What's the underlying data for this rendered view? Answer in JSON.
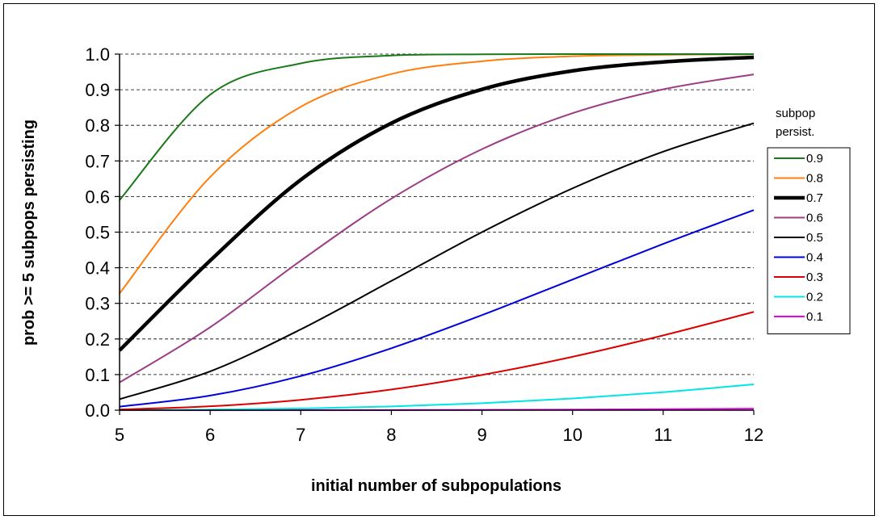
{
  "chart_data": {
    "type": "line",
    "xlabel": "initial number of subpopulations",
    "ylabel": "prob >= 5 subpops persisting",
    "xlim": [
      5,
      12
    ],
    "ylim": [
      0,
      1
    ],
    "x_ticks": [
      "5",
      "6",
      "7",
      "8",
      "9",
      "10",
      "11",
      "12"
    ],
    "y_ticks": [
      "0.0",
      "0.1",
      "0.2",
      "0.3",
      "0.4",
      "0.5",
      "0.6",
      "0.7",
      "0.8",
      "0.9",
      "1.0"
    ],
    "grid": "horizontal dashed",
    "legend_title": [
      "subpop",
      "persist."
    ],
    "legend_position": "right",
    "x": [
      5,
      6,
      7,
      8,
      9,
      10,
      11,
      12
    ],
    "series": [
      {
        "name": "0.9",
        "color": "#1a7a1a",
        "width": 2,
        "values": [
          0.59,
          0.886,
          0.974,
          0.996,
          0.9995,
          1.0,
          1.0,
          1.0
        ]
      },
      {
        "name": "0.8",
        "color": "#ff7f0e",
        "width": 2,
        "values": [
          0.328,
          0.655,
          0.852,
          0.944,
          0.98,
          0.994,
          0.998,
          0.9995
        ]
      },
      {
        "name": "0.7",
        "color": "#000000",
        "width": 4.5,
        "values": [
          0.168,
          0.42,
          0.647,
          0.806,
          0.901,
          0.953,
          0.978,
          0.991
        ]
      },
      {
        "name": "0.6",
        "color": "#9b3c84",
        "width": 2,
        "values": [
          0.078,
          0.233,
          0.42,
          0.594,
          0.733,
          0.834,
          0.901,
          0.943
        ]
      },
      {
        "name": "0.5",
        "color": "#000000",
        "width": 2,
        "values": [
          0.031,
          0.109,
          0.227,
          0.363,
          0.5,
          0.623,
          0.726,
          0.806
        ]
      },
      {
        "name": "0.4",
        "color": "#0000dd",
        "width": 2,
        "values": [
          0.01,
          0.041,
          0.096,
          0.174,
          0.267,
          0.367,
          0.467,
          0.562
        ]
      },
      {
        "name": "0.3",
        "color": "#dd0000",
        "width": 2,
        "values": [
          0.002,
          0.011,
          0.029,
          0.058,
          0.099,
          0.15,
          0.21,
          0.276
        ]
      },
      {
        "name": "0.2",
        "color": "#00e5e5",
        "width": 2,
        "values": [
          0.0003,
          0.0016,
          0.0047,
          0.0104,
          0.0196,
          0.0328,
          0.0504,
          0.0726
        ]
      },
      {
        "name": "0.1",
        "color": "#ee00ee",
        "width": 2,
        "values": [
          0.0,
          0.0001,
          0.0002,
          0.0004,
          0.0009,
          0.0016,
          0.0028,
          0.0043
        ]
      }
    ]
  }
}
